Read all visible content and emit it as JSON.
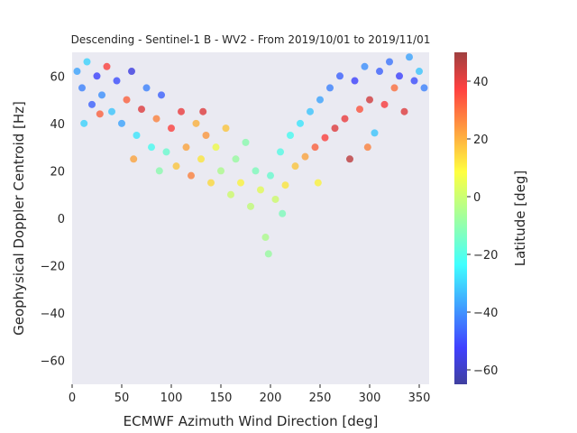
{
  "chart_data": {
    "type": "scatter",
    "title": "Descending - Sentinel-1 B - WV2 - From 2019/10/01 to 2019/11/01",
    "xlabel": "ECMWF Azimuth Wind Direction [deg]",
    "ylabel": "Geophysical Doppler Centroid [Hz]",
    "xlim": [
      0,
      360
    ],
    "ylim": [
      -70,
      70
    ],
    "xticks": [
      "0",
      "50",
      "100",
      "150",
      "200",
      "250",
      "300",
      "350"
    ],
    "yticks": [
      "60",
      "40",
      "20",
      "0",
      "−20",
      "−40",
      "−60"
    ],
    "colorbar": {
      "label": "Latitude [deg]",
      "range": [
        -65,
        50
      ],
      "ticks": [
        "40",
        "20",
        "0",
        "−20",
        "−40",
        "−60"
      ],
      "colormap": "jet"
    },
    "grid": false,
    "background": "#eaeaf2",
    "points": [
      [
        5,
        62,
        -35
      ],
      [
        10,
        55,
        -40
      ],
      [
        15,
        66,
        -28
      ],
      [
        20,
        48,
        -45
      ],
      [
        25,
        60,
        -50
      ],
      [
        30,
        52,
        -38
      ],
      [
        35,
        64,
        35
      ],
      [
        40,
        45,
        -30
      ],
      [
        45,
        58,
        -48
      ],
      [
        50,
        40,
        -35
      ],
      [
        55,
        50,
        30
      ],
      [
        60,
        62,
        -55
      ],
      [
        65,
        35,
        -25
      ],
      [
        70,
        46,
        40
      ],
      [
        75,
        55,
        -40
      ],
      [
        80,
        30,
        -20
      ],
      [
        85,
        42,
        25
      ],
      [
        90,
        52,
        -45
      ],
      [
        95,
        28,
        -15
      ],
      [
        100,
        38,
        35
      ],
      [
        105,
        22,
        15
      ],
      [
        110,
        45,
        38
      ],
      [
        115,
        30,
        20
      ],
      [
        120,
        18,
        25
      ],
      [
        125,
        40,
        18
      ],
      [
        130,
        25,
        10
      ],
      [
        135,
        35,
        22
      ],
      [
        140,
        15,
        12
      ],
      [
        145,
        30,
        5
      ],
      [
        150,
        20,
        -5
      ],
      [
        155,
        38,
        15
      ],
      [
        160,
        10,
        0
      ],
      [
        165,
        25,
        -8
      ],
      [
        170,
        15,
        8
      ],
      [
        175,
        32,
        -10
      ],
      [
        180,
        5,
        -2
      ],
      [
        185,
        20,
        -12
      ],
      [
        190,
        12,
        3
      ],
      [
        195,
        -8,
        -5
      ],
      [
        200,
        18,
        -15
      ],
      [
        205,
        8,
        0
      ],
      [
        210,
        28,
        -18
      ],
      [
        215,
        14,
        10
      ],
      [
        220,
        35,
        -20
      ],
      [
        225,
        22,
        15
      ],
      [
        230,
        40,
        -25
      ],
      [
        235,
        26,
        20
      ],
      [
        240,
        45,
        -30
      ],
      [
        245,
        30,
        30
      ],
      [
        250,
        50,
        -35
      ],
      [
        255,
        34,
        35
      ],
      [
        260,
        55,
        -40
      ],
      [
        265,
        38,
        40
      ],
      [
        270,
        60,
        -45
      ],
      [
        275,
        42,
        38
      ],
      [
        280,
        25,
        45
      ],
      [
        285,
        58,
        -50
      ],
      [
        290,
        46,
        32
      ],
      [
        295,
        64,
        -38
      ],
      [
        300,
        50,
        42
      ],
      [
        305,
        36,
        -30
      ],
      [
        310,
        62,
        -45
      ],
      [
        315,
        48,
        36
      ],
      [
        320,
        66,
        -42
      ],
      [
        325,
        55,
        28
      ],
      [
        330,
        60,
        -50
      ],
      [
        335,
        45,
        40
      ],
      [
        340,
        68,
        -35
      ],
      [
        345,
        58,
        -48
      ],
      [
        350,
        62,
        -30
      ],
      [
        355,
        55,
        -40
      ],
      [
        12,
        40,
        -28
      ],
      [
        28,
        44,
        30
      ],
      [
        62,
        25,
        20
      ],
      [
        88,
        20,
        -10
      ],
      [
        132,
        45,
        40
      ],
      [
        198,
        -15,
        -8
      ],
      [
        212,
        2,
        -12
      ],
      [
        248,
        15,
        8
      ],
      [
        298,
        30,
        25
      ]
    ]
  }
}
